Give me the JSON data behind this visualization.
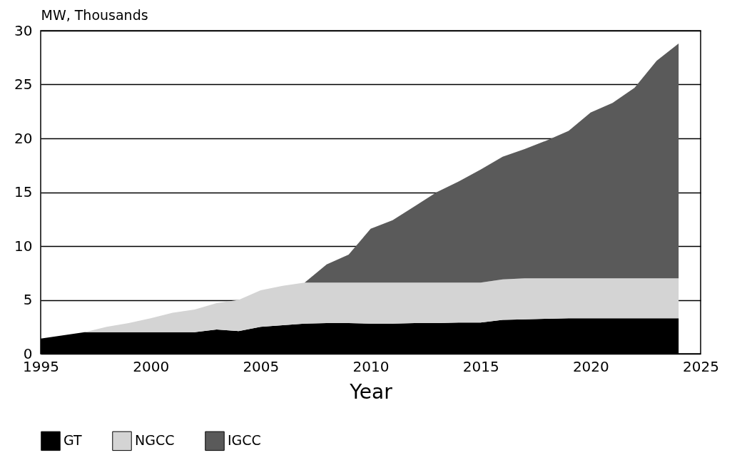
{
  "chart_data": {
    "type": "area",
    "stacked": true,
    "xlabel": "Year",
    "ylabel": "MW, Thousands",
    "x": [
      1995,
      1996,
      1997,
      1998,
      1999,
      2000,
      2001,
      2002,
      2003,
      2004,
      2005,
      2006,
      2007,
      2008,
      2009,
      2010,
      2011,
      2012,
      2013,
      2014,
      2015,
      2016,
      2017,
      2018,
      2019,
      2020,
      2021,
      2022,
      2023,
      2024
    ],
    "series": [
      {
        "name": "GT",
        "color": "#000000",
        "values": [
          1.4,
          1.7,
          2.0,
          2.0,
          2.0,
          2.0,
          2.0,
          2.0,
          2.25,
          2.1,
          2.5,
          2.65,
          2.8,
          2.85,
          2.85,
          2.8,
          2.8,
          2.85,
          2.85,
          2.9,
          2.9,
          3.15,
          3.2,
          3.25,
          3.3,
          3.3,
          3.3,
          3.3,
          3.3,
          3.3
        ]
      },
      {
        "name": "NGCC",
        "color": "#d4d4d4",
        "values": [
          0,
          0,
          0,
          0.5,
          0.85,
          1.3,
          1.8,
          2.1,
          2.45,
          2.9,
          3.4,
          3.65,
          3.8,
          3.75,
          3.75,
          3.8,
          3.8,
          3.75,
          3.75,
          3.7,
          3.7,
          3.75,
          3.8,
          3.75,
          3.7,
          3.7,
          3.7,
          3.7,
          3.7,
          3.7
        ]
      },
      {
        "name": "IGCC",
        "color": "#5a5a5a",
        "values": [
          0,
          0,
          0,
          0,
          0,
          0,
          0,
          0,
          0,
          0,
          0,
          0,
          0,
          1.7,
          2.6,
          5.0,
          5.8,
          7.1,
          8.4,
          9.4,
          10.5,
          11.4,
          12.0,
          12.8,
          13.7,
          15.4,
          16.3,
          17.7,
          20.2,
          21.8
        ]
      }
    ],
    "xlim": [
      1995,
      2025
    ],
    "xticks": [
      1995,
      2000,
      2005,
      2010,
      2015,
      2020,
      2025
    ],
    "ylim": [
      0,
      30
    ],
    "yticks": [
      0,
      5,
      10,
      15,
      20,
      25,
      30
    ],
    "grid": "y",
    "legend": "bottom"
  }
}
